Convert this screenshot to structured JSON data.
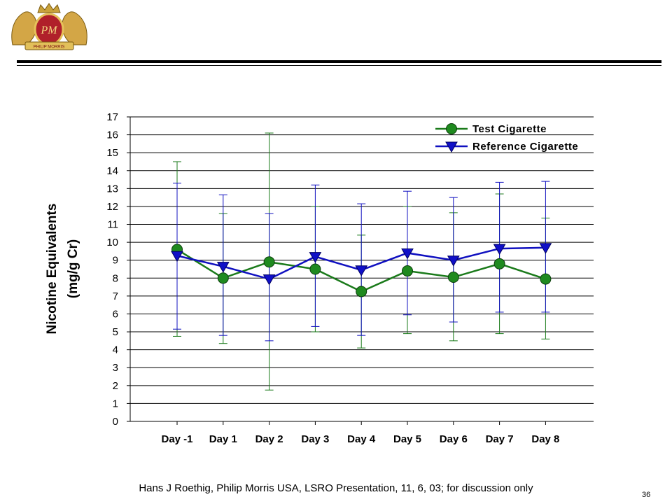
{
  "slide": {
    "footer": "Hans J Roethig, Philip Morris USA, LSRO Presentation, 11, 6, 03; for discussion only",
    "page_number": "36",
    "logo_text": "PM",
    "logo_banner": "PHILIP MORRIS"
  },
  "chart_data": {
    "type": "line",
    "title": "",
    "ylabel_line1": "Nicotine Equivalents",
    "ylabel_line2": "(mg/g Cr)",
    "xlabel": "",
    "ylim": [
      0,
      17
    ],
    "yticks": [
      0,
      1,
      2,
      3,
      4,
      5,
      6,
      7,
      8,
      9,
      10,
      11,
      12,
      13,
      14,
      15,
      16,
      17
    ],
    "grid": true,
    "legend_position": "top-right",
    "categories": [
      "Day -1",
      "Day 1",
      "Day 2",
      "Day 3",
      "Day 4",
      "Day 5",
      "Day 6",
      "Day 7",
      "Day 8"
    ],
    "series": [
      {
        "name": "Test Cigarette",
        "color": "#1a7a1a",
        "fill": "#1f8a1f",
        "marker": "circle",
        "values": [
          9.6,
          8.0,
          8.9,
          8.5,
          7.25,
          8.4,
          8.05,
          8.8,
          7.95
        ],
        "err_low": [
          4.75,
          4.35,
          1.75,
          5.0,
          4.1,
          4.9,
          4.5,
          4.9,
          4.6
        ],
        "err_high": [
          14.5,
          11.6,
          16.1,
          12.0,
          10.4,
          12.0,
          11.65,
          12.7,
          11.35
        ]
      },
      {
        "name": "Reference Cigarette",
        "color": "#1010c0",
        "fill": "#1010c8",
        "marker": "triangle-down",
        "values": [
          9.25,
          8.65,
          7.95,
          9.2,
          8.45,
          9.4,
          9.0,
          9.65,
          9.7
        ],
        "err_low": [
          5.15,
          4.8,
          4.5,
          5.3,
          4.8,
          5.95,
          5.55,
          6.1,
          6.1
        ],
        "err_high": [
          13.3,
          12.65,
          11.6,
          13.2,
          12.15,
          12.85,
          12.5,
          13.35,
          13.4
        ]
      }
    ]
  }
}
